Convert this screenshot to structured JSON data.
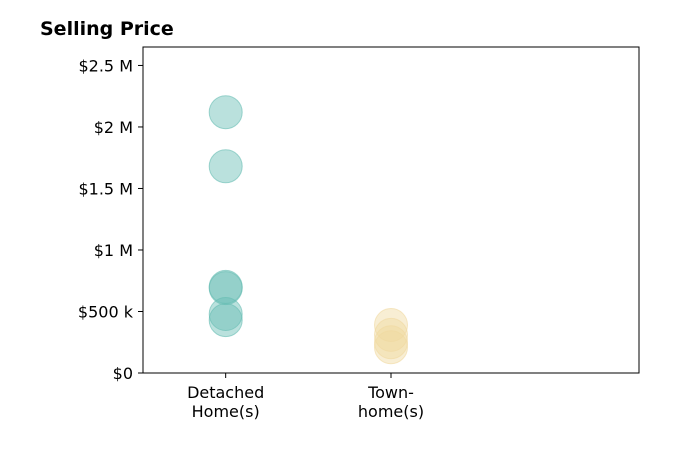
{
  "chart_data": {
    "type": "scatter",
    "title": "Selling Price",
    "xlabel": "",
    "ylabel": "",
    "categories": [
      [
        "Detached",
        "Home(s)"
      ],
      [
        "Town-",
        "home(s)"
      ]
    ],
    "xlim": [
      -0.5,
      2.5
    ],
    "ylim": [
      0,
      2650000
    ],
    "yticks": [
      {
        "value": 0,
        "label": "$0"
      },
      {
        "value": 500000,
        "label": "$500 k"
      },
      {
        "value": 1000000,
        "label": "$1 M"
      },
      {
        "value": 1500000,
        "label": "$1.5 M"
      },
      {
        "value": 2000000,
        "label": "$2 M"
      },
      {
        "value": 2500000,
        "label": "$2.5 M"
      }
    ],
    "grid": false,
    "legend": "none",
    "series": [
      {
        "category_index": 0,
        "color": "#66bdb3",
        "opacity": 0.45,
        "values": [
          2120000,
          1680000,
          700000,
          690000,
          480000,
          430000
        ]
      },
      {
        "category_index": 1,
        "color": "#f0d9a0",
        "opacity": 0.45,
        "values": [
          390000,
          310000,
          250000,
          210000
        ]
      }
    ]
  }
}
